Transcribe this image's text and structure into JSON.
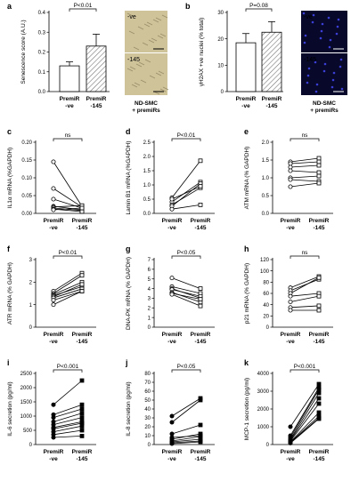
{
  "colors": {
    "axis": "#000000",
    "bar_fill": "#ffffff",
    "hatch": "#777777",
    "micro_bg_a": "#cfc39a",
    "micro_bg_b": "#07082a",
    "micro_dot_b": "#3b3fd6",
    "micro_label_a": "#000000",
    "micro_label_b": "#ffffff"
  },
  "chart_data": [
    {
      "panel": "a",
      "type": "bar",
      "categories": [
        "PremiR\n-ve",
        "PremiR\n-145"
      ],
      "values": [
        0.13,
        0.23
      ],
      "errors": [
        0.02,
        0.06
      ],
      "ylabel": "Senescence score (A.U.)",
      "ylim": [
        0,
        0.4
      ],
      "yticks": [
        0.0,
        0.1,
        0.2,
        0.3,
        0.4
      ],
      "ytick_labels": [
        "0.0",
        "0.1",
        "0.2",
        "0.3",
        "0.4"
      ],
      "significance": "P<0.01",
      "image_caption": "ND-SMC\n+ premiRs",
      "image_labels": [
        "-ve",
        "-145"
      ]
    },
    {
      "panel": "b",
      "type": "bar",
      "categories": [
        "PremiR\n-ve",
        "PremiR\n-145"
      ],
      "values": [
        18.5,
        22.5
      ],
      "errors": [
        3.5,
        4.0
      ],
      "ylabel": "γH2AX +ve nuclei (% total)",
      "ylim": [
        0,
        30
      ],
      "yticks": [
        0,
        10,
        20,
        30
      ],
      "ytick_labels": [
        "0",
        "10",
        "20",
        "30"
      ],
      "significance": "P=0.08",
      "image_caption": "ND-SMC\n+ premiRs",
      "image_labels": [
        "-ve",
        "-145"
      ]
    },
    {
      "panel": "c",
      "type": "paired",
      "categories": [
        "PremiR\n-ve",
        "PremiR\n-145"
      ],
      "ylabel": "IL1α mRNA (%GAPDH)",
      "ylim": [
        0,
        0.2
      ],
      "yticks": [
        0,
        0.05,
        0.1,
        0.15,
        0.2
      ],
      "ytick_labels": [
        "0.00",
        "0.05",
        "0.10",
        "0.15",
        "0.20"
      ],
      "significance": "ns",
      "pairs": [
        [
          0.145,
          0.02
        ],
        [
          0.07,
          0.018
        ],
        [
          0.04,
          0.015
        ],
        [
          0.02,
          0.01
        ],
        [
          0.018,
          0.022
        ],
        [
          0.015,
          0.008
        ],
        [
          0.012,
          0.005
        ],
        [
          0.01,
          0.015
        ]
      ]
    },
    {
      "panel": "d",
      "type": "paired",
      "categories": [
        "PremiR\n-ve",
        "PremiR\n-145"
      ],
      "ylabel": "Lamin B1 mRNA (%GAPDH)",
      "ylim": [
        0,
        2.5
      ],
      "yticks": [
        0,
        0.5,
        1,
        1.5,
        2,
        2.5
      ],
      "ytick_labels": [
        "0.0",
        "0.5",
        "1.0",
        "1.5",
        "2.0",
        "2.5"
      ],
      "significance": "P<0.01",
      "pairs": [
        [
          0.55,
          1.85
        ],
        [
          0.4,
          1.1
        ],
        [
          0.3,
          0.9
        ],
        [
          0.25,
          1.05
        ],
        [
          0.5,
          0.95
        ],
        [
          0.15,
          0.3
        ]
      ]
    },
    {
      "panel": "e",
      "type": "paired",
      "categories": [
        "PremiR\n-ve",
        "PremiR\n-145"
      ],
      "ylabel": "ATM mRNA (% GAPDH)",
      "ylim": [
        0,
        2.0
      ],
      "yticks": [
        0,
        0.5,
        1,
        1.5,
        2
      ],
      "ytick_labels": [
        "0.0",
        "0.5",
        "1.0",
        "1.5",
        "2.0"
      ],
      "significance": "ns",
      "pairs": [
        [
          1.45,
          1.55
        ],
        [
          1.4,
          1.45
        ],
        [
          1.3,
          1.35
        ],
        [
          1.2,
          1.15
        ],
        [
          1.0,
          1.05
        ],
        [
          0.95,
          0.9
        ],
        [
          0.75,
          0.85
        ]
      ]
    },
    {
      "panel": "f",
      "type": "paired",
      "categories": [
        "PremiR\n-ve",
        "PremiR\n-145"
      ],
      "ylabel": "ATR mRNA (% GAPDH)",
      "ylim": [
        0,
        3
      ],
      "yticks": [
        0,
        1,
        2,
        3
      ],
      "ytick_labels": [
        "0",
        "1",
        "2",
        "3"
      ],
      "significance": "P<0.01",
      "pairs": [
        [
          1.6,
          2.4
        ],
        [
          1.5,
          2.3
        ],
        [
          1.45,
          2.0
        ],
        [
          1.4,
          1.8
        ],
        [
          1.35,
          1.9
        ],
        [
          1.3,
          1.7
        ],
        [
          1.2,
          1.6
        ],
        [
          1.0,
          1.6
        ]
      ]
    },
    {
      "panel": "g",
      "type": "paired",
      "categories": [
        "PremiR\n-ve",
        "PremiR\n-145"
      ],
      "ylabel": "DNA-PK mRNA (% GAPDH)",
      "ylim": [
        0,
        7
      ],
      "yticks": [
        0,
        1,
        2,
        3,
        4,
        5,
        6,
        7
      ],
      "ytick_labels": [
        "0",
        "1",
        "2",
        "3",
        "4",
        "5",
        "6",
        "7"
      ],
      "significance": "P<0.05",
      "pairs": [
        [
          5.1,
          4.0
        ],
        [
          4.2,
          3.5
        ],
        [
          4.0,
          3.0
        ],
        [
          3.9,
          3.2
        ],
        [
          3.6,
          2.6
        ],
        [
          3.5,
          2.9
        ],
        [
          3.4,
          2.2
        ]
      ]
    },
    {
      "panel": "h",
      "type": "paired",
      "categories": [
        "PremiR\n-ve",
        "PremiR\n-145"
      ],
      "ylabel": "p21 mRNA (% GAPDH)",
      "ylim": [
        0,
        120
      ],
      "yticks": [
        0,
        20,
        40,
        60,
        80,
        100,
        120
      ],
      "ytick_labels": [
        "0",
        "20",
        "40",
        "60",
        "80",
        "100",
        "120"
      ],
      "significance": "ns",
      "pairs": [
        [
          70,
          90
        ],
        [
          65,
          85
        ],
        [
          60,
          88
        ],
        [
          55,
          60
        ],
        [
          45,
          55
        ],
        [
          35,
          38
        ],
        [
          30,
          30
        ]
      ]
    },
    {
      "panel": "i",
      "type": "paired",
      "categories": [
        "PremiR\n-ve",
        "PremiR\n-145"
      ],
      "ylabel": "IL-6 secretion (pg/ml)",
      "ylim": [
        0,
        2500
      ],
      "yticks": [
        0,
        500,
        1000,
        1500,
        2000,
        2500
      ],
      "ytick_labels": [
        "0",
        "500",
        "1000",
        "1500",
        "2000",
        "2500"
      ],
      "significance": "P<0.001",
      "pairs": [
        [
          1400,
          2250
        ],
        [
          1050,
          1400
        ],
        [
          950,
          1250
        ],
        [
          800,
          1100
        ],
        [
          700,
          950
        ],
        [
          600,
          800
        ],
        [
          550,
          750
        ],
        [
          450,
          650
        ],
        [
          350,
          500
        ],
        [
          250,
          300
        ]
      ]
    },
    {
      "panel": "j",
      "type": "paired",
      "categories": [
        "PremiR\n-ve",
        "PremiR\n-145"
      ],
      "ylabel": "IL-8 secretion (pg/ml)",
      "ylim": [
        0,
        80
      ],
      "yticks": [
        0,
        10,
        20,
        30,
        40,
        50,
        60,
        70,
        80
      ],
      "ytick_labels": [
        "0",
        "10",
        "20",
        "30",
        "40",
        "50",
        "60",
        "70",
        "80"
      ],
      "significance": "P<0.05",
      "pairs": [
        [
          32,
          52
        ],
        [
          25,
          50
        ],
        [
          12,
          22
        ],
        [
          8,
          10
        ],
        [
          6,
          12
        ],
        [
          4,
          9
        ],
        [
          3,
          6
        ],
        [
          2,
          4
        ],
        [
          1,
          3
        ]
      ]
    },
    {
      "panel": "k",
      "type": "paired",
      "categories": [
        "PremiR\n-ve",
        "PremiR\n-145"
      ],
      "ylabel": "MCP-1 secretion (pg/ml)",
      "ylim": [
        0,
        4000
      ],
      "yticks": [
        0,
        1000,
        2000,
        3000,
        4000
      ],
      "ytick_labels": [
        "0",
        "1000",
        "2000",
        "3000",
        "4000"
      ],
      "significance": "P<0.001",
      "pairs": [
        [
          1000,
          3400
        ],
        [
          500,
          3200
        ],
        [
          400,
          3100
        ],
        [
          300,
          2900
        ],
        [
          250,
          2600
        ],
        [
          200,
          2300
        ],
        [
          150,
          1800
        ],
        [
          120,
          1600
        ],
        [
          100,
          1500
        ],
        [
          80,
          1450
        ]
      ]
    }
  ]
}
